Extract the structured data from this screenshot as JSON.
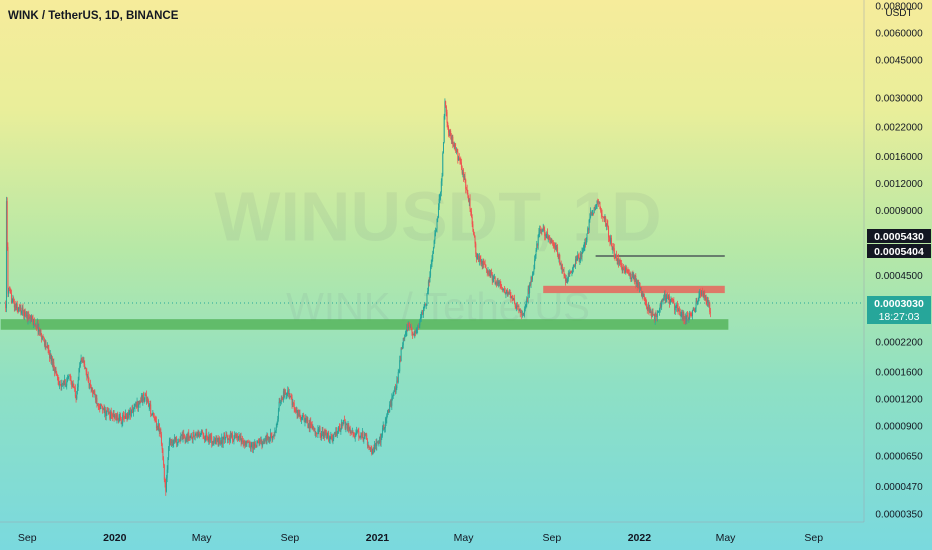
{
  "header": {
    "title": "WINK / TetherUS, 1D, BINANCE",
    "watermark_main": "WINUSDT, 1D",
    "watermark_sub": "WINK / TetherUS"
  },
  "price_axis": {
    "unit": "USDT",
    "labels": [
      "0.0080000",
      "0.0060000",
      "0.0045000",
      "0.0030000",
      "0.0022000",
      "0.0016000",
      "0.0012000",
      "0.0009000",
      "0.0004500",
      "0.0002200",
      "0.0001600",
      "0.0001200",
      "0.0000900",
      "0.0000650",
      "0.0000470",
      "0.0000350"
    ],
    "tag_high": "0.0005430",
    "tag_low": "0.0005404",
    "current_price": "0.0003030",
    "countdown": "18:27:03"
  },
  "time_axis": {
    "labels": [
      "Sep",
      "2020",
      "May",
      "Sep",
      "2021",
      "May",
      "Sep",
      "2022",
      "May",
      "Sep"
    ],
    "bold": [
      "2020",
      "2021",
      "2022"
    ]
  },
  "colors": {
    "up": "#26a69a",
    "down": "#ef5350",
    "support_zone": "#4caf50",
    "resistance_zone": "#ef5350",
    "price_tag": "#26a69a",
    "axis_text": "#131722"
  },
  "chart_data": {
    "type": "candlestick",
    "title": "WINK / TetherUS, 1D, BINANCE",
    "y_scale": "log",
    "ylim": [
      3.2e-05,
      0.0085
    ],
    "xlim": [
      "2019-07-25",
      "2022-11-10"
    ],
    "path": [
      [
        "2019-08-02",
        0.00033
      ],
      [
        "2019-08-03",
        0.00095
      ],
      [
        "2019-08-05",
        0.00038
      ],
      [
        "2019-08-15",
        0.00032
      ],
      [
        "2019-08-28",
        0.0003
      ],
      [
        "2019-09-15",
        0.00026
      ],
      [
        "2019-09-25",
        0.00022
      ],
      [
        "2019-10-08",
        0.00017
      ],
      [
        "2019-10-18",
        0.000135
      ],
      [
        "2019-10-30",
        0.00015
      ],
      [
        "2019-11-08",
        0.000125
      ],
      [
        "2019-11-15",
        0.00019
      ],
      [
        "2019-11-28",
        0.000135
      ],
      [
        "2019-12-15",
        0.000105
      ],
      [
        "2020-01-10",
        9.5e-05
      ],
      [
        "2020-01-25",
        0.000105
      ],
      [
        "2020-02-12",
        0.000125
      ],
      [
        "2020-02-25",
        9.5e-05
      ],
      [
        "2020-03-05",
        8.5e-05
      ],
      [
        "2020-03-12",
        4.3e-05
      ],
      [
        "2020-03-16",
        7.5e-05
      ],
      [
        "2020-04-01",
        7.8e-05
      ],
      [
        "2020-05-01",
        8.2e-05
      ],
      [
        "2020-05-20",
        7.5e-05
      ],
      [
        "2020-06-15",
        8e-05
      ],
      [
        "2020-07-10",
        7.2e-05
      ],
      [
        "2020-08-01",
        7.8e-05
      ],
      [
        "2020-08-12",
        8.2e-05
      ],
      [
        "2020-08-18",
        0.000118
      ],
      [
        "2020-08-28",
        0.000132
      ],
      [
        "2020-09-08",
        0.000105
      ],
      [
        "2020-09-25",
        9.2e-05
      ],
      [
        "2020-10-15",
        8.2e-05
      ],
      [
        "2020-10-30",
        7.8e-05
      ],
      [
        "2020-11-15",
        9.2e-05
      ],
      [
        "2020-11-30",
        8.2e-05
      ],
      [
        "2020-12-15",
        8e-05
      ],
      [
        "2020-12-24",
        6.8e-05
      ],
      [
        "2021-01-05",
        7.8e-05
      ],
      [
        "2021-01-18",
        0.00011
      ],
      [
        "2021-01-28",
        0.00014
      ],
      [
        "2021-02-05",
        0.00022
      ],
      [
        "2021-02-12",
        0.00026
      ],
      [
        "2021-02-20",
        0.00024
      ],
      [
        "2021-03-01",
        0.00027
      ],
      [
        "2021-03-10",
        0.00034
      ],
      [
        "2021-03-18",
        0.00055
      ],
      [
        "2021-03-25",
        0.0008
      ],
      [
        "2021-04-01",
        0.0013
      ],
      [
        "2021-04-05",
        0.0029
      ],
      [
        "2021-04-10",
        0.0021
      ],
      [
        "2021-04-20",
        0.0017
      ],
      [
        "2021-05-01",
        0.0013
      ],
      [
        "2021-05-10",
        0.00095
      ],
      [
        "2021-05-19",
        0.00055
      ],
      [
        "2021-06-01",
        0.00048
      ],
      [
        "2021-06-20",
        0.0004
      ],
      [
        "2021-07-10",
        0.00034
      ],
      [
        "2021-07-22",
        0.00029
      ],
      [
        "2021-08-05",
        0.00045
      ],
      [
        "2021-08-15",
        0.00075
      ],
      [
        "2021-08-28",
        0.00068
      ],
      [
        "2021-09-08",
        0.00058
      ],
      [
        "2021-09-20",
        0.00042
      ],
      [
        "2021-10-01",
        0.0005
      ],
      [
        "2021-10-15",
        0.00058
      ],
      [
        "2021-10-25",
        0.00085
      ],
      [
        "2021-11-05",
        0.00098
      ],
      [
        "2021-11-15",
        0.00078
      ],
      [
        "2021-11-28",
        0.00055
      ],
      [
        "2021-12-10",
        0.00048
      ],
      [
        "2021-12-28",
        0.00042
      ],
      [
        "2022-01-10",
        0.00033
      ],
      [
        "2022-01-22",
        0.00028
      ],
      [
        "2022-02-05",
        0.00036
      ],
      [
        "2022-02-20",
        0.00032
      ],
      [
        "2022-03-05",
        0.00028
      ],
      [
        "2022-03-15",
        0.00029
      ],
      [
        "2022-03-28",
        0.00038
      ],
      [
        "2022-04-05",
        0.00035
      ],
      [
        "2022-04-10",
        0.000303
      ]
    ],
    "annotations": [
      {
        "kind": "support_zone",
        "from": "2019-07-26",
        "to": "2022-05-05",
        "low": 0.00025,
        "high": 0.00028
      },
      {
        "kind": "resistance_zone",
        "from": "2021-08-20",
        "to": "2022-04-30",
        "low": 0.00037,
        "high": 0.0004
      },
      {
        "kind": "horizontal_line",
        "from": "2021-11-01",
        "to": "2022-04-30",
        "price": 0.00055
      }
    ]
  }
}
